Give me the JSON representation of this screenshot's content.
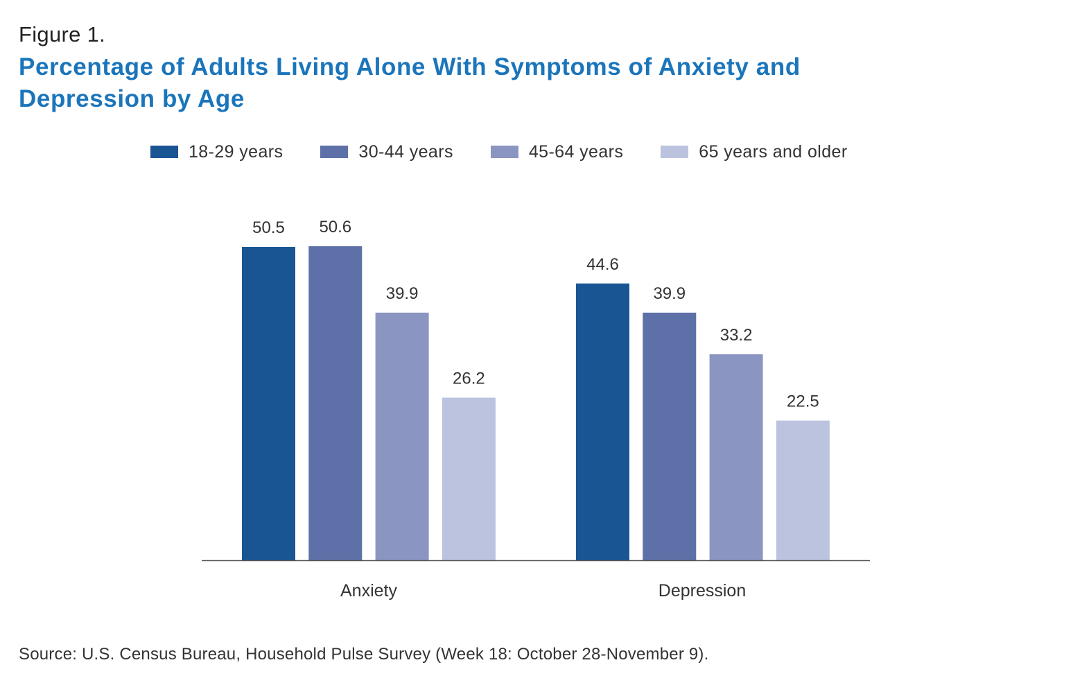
{
  "figure_label": "Figure 1.",
  "title": "Percentage of Adults Living Alone With Symptoms of Anxiety and Depression by Age",
  "source": "Source: U.S. Census Bureau, Household Pulse Survey (Week 18: October 28-November 9).",
  "colors": {
    "title": "#1b75bb",
    "axis": "#555555",
    "text": "#333333"
  },
  "chart_data": {
    "type": "bar",
    "title": "Percentage of Adults Living Alone With Symptoms of Anxiety and Depression by Age",
    "xlabel": "",
    "ylabel": "",
    "ylim": [
      0,
      60
    ],
    "grid": false,
    "legend_position": "top",
    "categories": [
      "Anxiety",
      "Depression"
    ],
    "series": [
      {
        "name": "18-29 years",
        "color": "#1a5593",
        "values": [
          50.5,
          44.6
        ]
      },
      {
        "name": "30-44 years",
        "color": "#5d70a8",
        "values": [
          50.6,
          39.9
        ]
      },
      {
        "name": "45-64 years",
        "color": "#8b95c1",
        "values": [
          39.9,
          33.2
        ]
      },
      {
        "name": "65 years and older",
        "color": "#bcc3df",
        "values": [
          26.2,
          22.5
        ]
      }
    ]
  }
}
